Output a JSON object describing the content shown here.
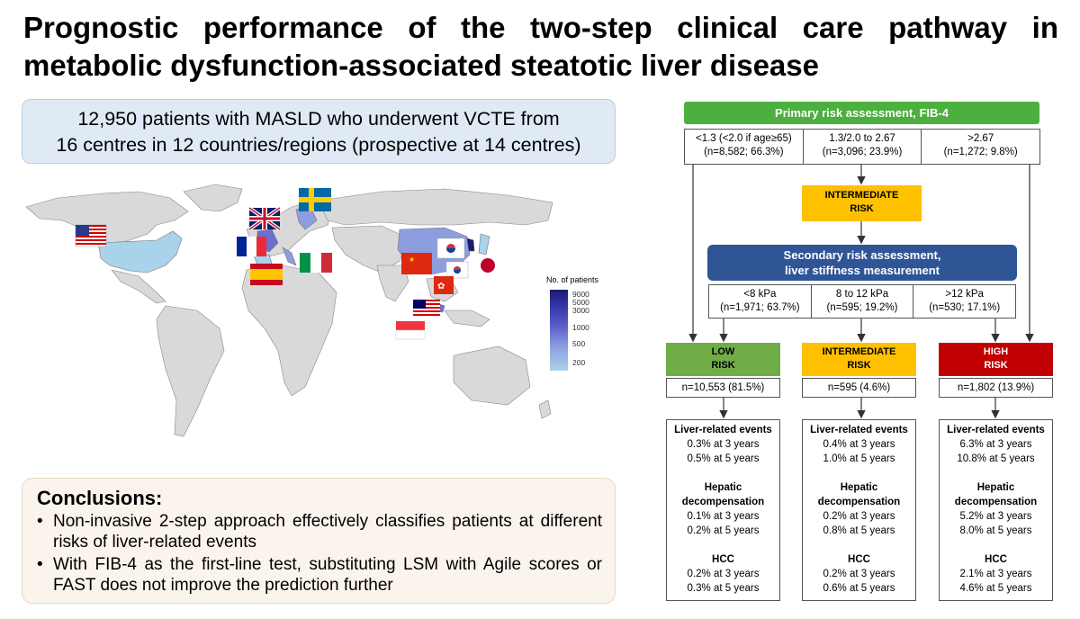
{
  "title": {
    "line1": "Prognostic performance of the two-step clinical care pathway in",
    "line2": "metabolic dysfunction-associated steatotic liver disease"
  },
  "summary": {
    "line1": "12,950 patients with MASLD who underwent VCTE from",
    "line2": "16 centres in 12 countries/regions (prospective at 14 centres)"
  },
  "map": {
    "legend_title": "No. of patients",
    "legend_ticks": [
      "9000",
      "5000",
      "3000",
      "1000",
      "500",
      "200"
    ],
    "colors": {
      "high": "#1a1a6e",
      "mid": "#6a6fd0",
      "low": "#a8d3ea",
      "land": "#d9d9d9"
    },
    "flags": [
      "united-states",
      "united-kingdom",
      "sweden",
      "france",
      "spain",
      "italy",
      "china",
      "south-korea",
      "japan",
      "hong-kong",
      "malaysia",
      "singapore"
    ]
  },
  "conclusions": {
    "heading": "Conclusions:",
    "items": [
      "Non-invasive 2-step approach effectively classifies patients at different risks of liver-related events",
      "With FIB-4 as the first-line test, substituting LSM with Agile scores or FAST does not improve the prediction further"
    ]
  },
  "flowchart": {
    "primary": "Primary risk assessment, FIB-4",
    "fib4": [
      {
        "line1": "<1.3 (<2.0 if age≥65)",
        "line2": "(n=8,582; 66.3%)"
      },
      {
        "line1": "1.3/2.0 to 2.67",
        "line2": "(n=3,096; 23.9%)"
      },
      {
        "line1": ">2.67",
        "line2": "(n=1,272; 9.8%)"
      }
    ],
    "intermediate_risk": {
      "line1": "INTERMEDIATE",
      "line2": "RISK"
    },
    "secondary": {
      "line1": "Secondary risk assessment,",
      "line2": "liver stiffness measurement"
    },
    "lsm": [
      {
        "line1": "<8 kPa",
        "line2": "(n=1,971; 63.7%)"
      },
      {
        "line1": "8 to 12 kPa",
        "line2": "(n=595; 19.2%)"
      },
      {
        "line1": ">12 kPa",
        "line2": "(n=530; 17.1%)"
      }
    ],
    "risks": [
      {
        "line1": "LOW",
        "line2": "RISK",
        "n": "n=10,553 (81.5%)",
        "color": "#70ad47"
      },
      {
        "line1": "INTERMEDIATE",
        "line2": "RISK",
        "n": "n=595 (4.6%)",
        "color": "#ffc000"
      },
      {
        "line1": "HIGH",
        "line2": "RISK",
        "n": "n=1,802 (13.9%)",
        "color": "#c00000"
      }
    ],
    "outcomes": [
      {
        "lre_title": "Liver-related events",
        "lre3": "0.3% at 3 years",
        "lre5": "0.5% at 5 years",
        "hd_title1": "Hepatic",
        "hd_title2": "decompensation",
        "hd3": "0.1% at 3 years",
        "hd5": "0.2% at 5 years",
        "hcc_title": "HCC",
        "hcc3": "0.2% at 3 years",
        "hcc5": "0.3% at 5 years"
      },
      {
        "lre_title": "Liver-related events",
        "lre3": "0.4% at 3 years",
        "lre5": "1.0% at 5 years",
        "hd_title1": "Hepatic",
        "hd_title2": "decompensation",
        "hd3": "0.2% at 3 years",
        "hd5": "0.8% at 5 years",
        "hcc_title": "HCC",
        "hcc3": "0.2% at 3 years",
        "hcc5": "0.6% at 5 years"
      },
      {
        "lre_title": "Liver-related events",
        "lre3": "6.3% at 3 years",
        "lre5": "10.8% at 5 years",
        "hd_title1": "Hepatic",
        "hd_title2": "decompensation",
        "hd3": "5.2% at 3 years",
        "hd5": "8.0% at 5 years",
        "hcc_title": "HCC",
        "hcc3": "2.1% at 3 years",
        "hcc5": "4.6% at 5 years"
      }
    ]
  }
}
